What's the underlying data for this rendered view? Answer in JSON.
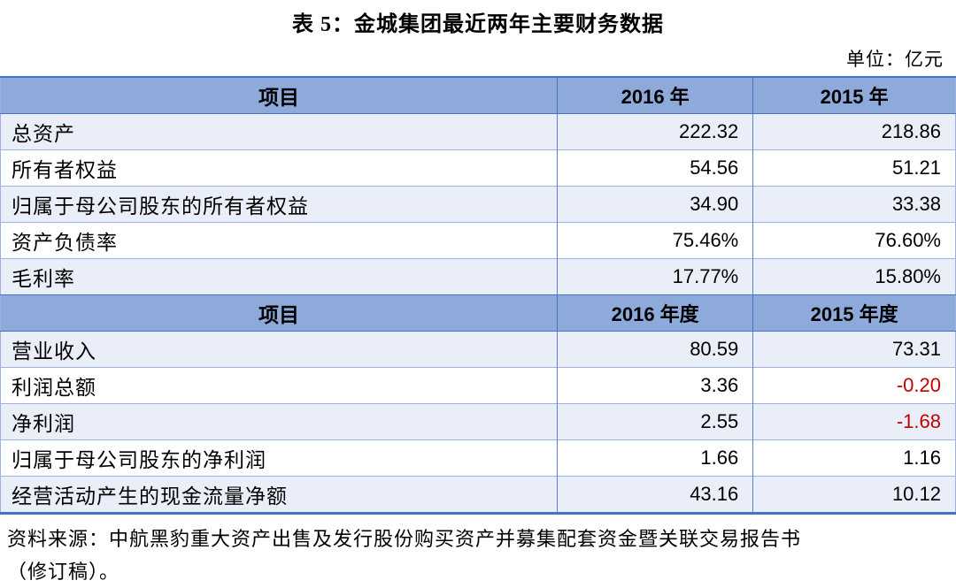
{
  "page": {
    "title": "表 5：金城集团最近两年主要财务数据",
    "unit_label": "单位：亿元",
    "source_line1": "资料来源：中航黑豹重大资产出售及发行股份购买资产并募集配套资金暨关联交易报告书",
    "source_line2": "（修订稿）。"
  },
  "colors": {
    "header_bg": "#8eaadb",
    "tint_bg": "#eaeef8",
    "border_dark": "#4472c4",
    "border_light": "#9db3df",
    "negative": "#c00000"
  },
  "table": {
    "sections": [
      {
        "header": {
          "col1": "项目",
          "col2": "2016 年",
          "col3": "2015 年"
        },
        "rows": [
          {
            "label": "总资产",
            "v2016": "222.32",
            "v2015": "218.86"
          },
          {
            "label": "所有者权益",
            "v2016": "54.56",
            "v2015": "51.21"
          },
          {
            "label": "归属于母公司股东的所有者权益",
            "v2016": "34.90",
            "v2015": "33.38"
          },
          {
            "label": "资产负债率",
            "v2016": "75.46%",
            "v2015": "76.60%"
          },
          {
            "label": "毛利率",
            "v2016": "17.77%",
            "v2015": "15.80%"
          }
        ]
      },
      {
        "header": {
          "col1": "项目",
          "col2": "2016 年度",
          "col3": "2015 年度"
        },
        "rows": [
          {
            "label": "营业收入",
            "v2016": "80.59",
            "v2015": "73.31"
          },
          {
            "label": "利润总额",
            "v2016": "3.36",
            "v2015": "-0.20"
          },
          {
            "label": "净利润",
            "v2016": "2.55",
            "v2015": "-1.68"
          },
          {
            "label": "归属于母公司股东的净利润",
            "v2016": "1.66",
            "v2015": "1.16"
          },
          {
            "label": "经营活动产生的现金流量净额",
            "v2016": "43.16",
            "v2015": "10.12"
          }
        ]
      }
    ]
  }
}
